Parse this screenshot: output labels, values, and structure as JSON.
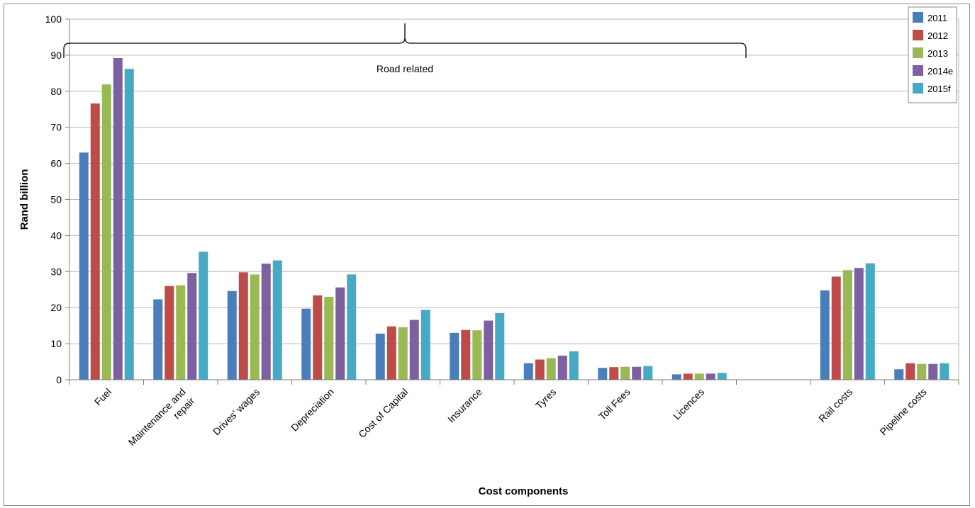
{
  "chart_data": {
    "type": "bar",
    "xlabel": "Cost components",
    "ylabel": "Rand billion",
    "ylim": [
      0,
      100
    ],
    "yticks": [
      0,
      10,
      20,
      30,
      40,
      50,
      60,
      70,
      80,
      90,
      100
    ],
    "grid": true,
    "legend_position": "top-right",
    "annotation": "Road related",
    "categories": [
      "Fuel",
      "Maintenance and repair",
      "Drives’ wages",
      "Depreciation",
      "Cost of Capital",
      "Insurance",
      "Tyres",
      "Toll Fees",
      "Licences",
      "",
      "Rail costs",
      "Pipeline costs"
    ],
    "series": [
      {
        "name": "2011",
        "color": "#4a7ebb",
        "values": [
          63.0,
          22.3,
          24.6,
          19.7,
          12.8,
          13.0,
          4.6,
          3.3,
          1.5,
          null,
          24.8,
          2.9
        ]
      },
      {
        "name": "2012",
        "color": "#be4b48",
        "values": [
          76.6,
          26.0,
          29.8,
          23.4,
          14.8,
          13.8,
          5.6,
          3.5,
          1.7,
          null,
          28.6,
          4.6
        ]
      },
      {
        "name": "2013",
        "color": "#98b954",
        "values": [
          81.9,
          26.2,
          29.2,
          23.0,
          14.6,
          13.7,
          6.0,
          3.6,
          1.7,
          null,
          30.4,
          4.4
        ]
      },
      {
        "name": "2014e",
        "color": "#7d60a0",
        "values": [
          89.2,
          29.6,
          32.2,
          25.6,
          16.6,
          16.4,
          6.7,
          3.6,
          1.7,
          null,
          31.0,
          4.4
        ]
      },
      {
        "name": "2015f",
        "color": "#46aac5",
        "values": [
          86.2,
          35.5,
          33.1,
          29.2,
          19.4,
          18.5,
          7.9,
          3.8,
          1.9,
          null,
          32.3,
          4.6
        ]
      }
    ]
  }
}
